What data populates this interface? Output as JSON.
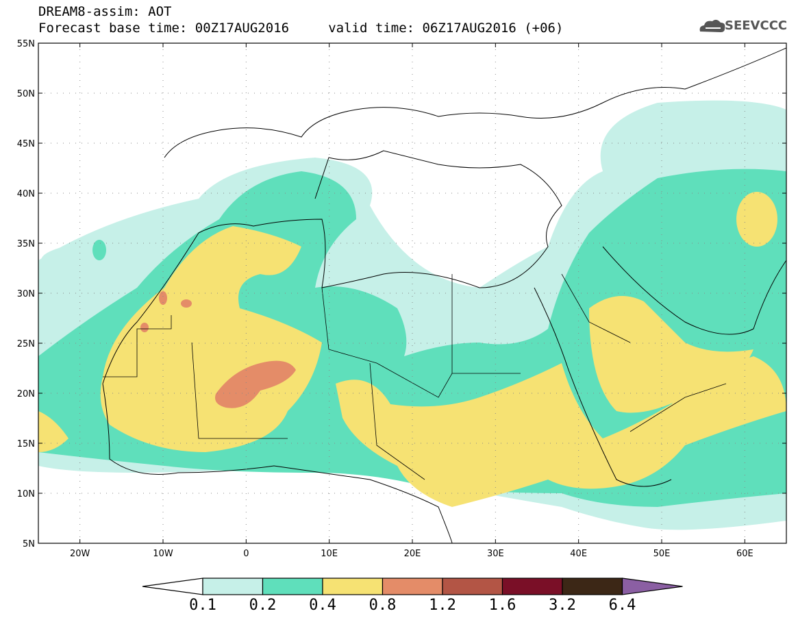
{
  "header": {
    "line1": "DREAM8-assim: AOT",
    "line2": "Forecast base time: 00Z17AUG2016     valid time: 06Z17AUG2016 (+06)",
    "logo_text": "SEEVCCC"
  },
  "map": {
    "lat_labels": [
      "55N",
      "50N",
      "45N",
      "40N",
      "35N",
      "30N",
      "25N",
      "20N",
      "15N",
      "10N",
      "5N"
    ],
    "lon_labels": [
      "20W",
      "10W",
      "0",
      "10E",
      "20E",
      "30E",
      "40E",
      "50E",
      "60E"
    ]
  },
  "legend": {
    "labels": [
      "0.1",
      "0.2",
      "0.4",
      "0.8",
      "1.2",
      "1.6",
      "3.2",
      "6.4"
    ],
    "colors": [
      "#c6f0e8",
      "#5fdfbb",
      "#f6e273",
      "#e48c68",
      "#b35545",
      "#7a0f27",
      "#3c2716",
      "#8b5fa3"
    ]
  },
  "colors": {
    "level1": "#c6f0e8",
    "level2": "#5fdfbb",
    "level3": "#f6e273",
    "level4": "#e48c68"
  }
}
